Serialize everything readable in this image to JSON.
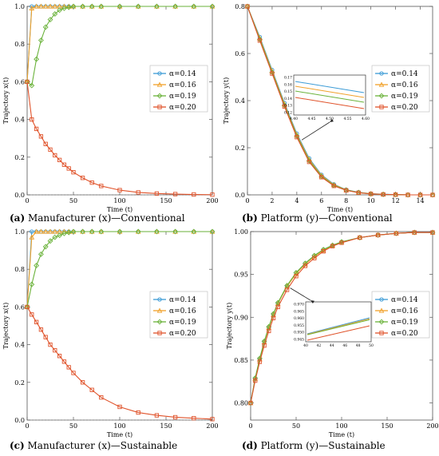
{
  "panels": [
    {
      "id": "a",
      "caption_label": "(a)",
      "caption_text": "Manufacturer (x)—Conventional",
      "xlabel": "Time (t)",
      "ylabel": "Trajectory x(t)",
      "xlim": [
        0,
        200
      ],
      "ylim": [
        0,
        1
      ],
      "xticks": [
        0,
        50,
        100,
        150,
        200
      ],
      "yticks": [
        0.0,
        0.2,
        0.4,
        0.6,
        0.8,
        1.0
      ],
      "ytick_labels": [
        "0.0",
        "0.2",
        "0.4",
        "0.6",
        "0.8",
        "1.0"
      ],
      "legend": [
        "α=0.14",
        "α=0.16",
        "α=0.19",
        "α=0.20"
      ]
    },
    {
      "id": "b",
      "caption_label": "(b)",
      "caption_text": "Platform (y)—Conventional",
      "xlabel": "Time (t)",
      "ylabel": "Trajectory y(t)",
      "xlim": [
        0,
        15
      ],
      "ylim": [
        0,
        0.8
      ],
      "xticks": [
        0,
        2,
        4,
        6,
        8,
        10,
        12,
        14
      ],
      "yticks": [
        0.0,
        0.2,
        0.4,
        0.6,
        0.8
      ],
      "ytick_labels": [
        "0.0",
        "0.2",
        "0.4",
        "0.6",
        "0.8"
      ],
      "legend": [
        "α=0.14",
        "α=0.16",
        "α=0.19",
        "α=0.20"
      ],
      "inset": {
        "xticks": [
          "4.40",
          "4.45",
          "4.50",
          "4.55",
          "4.60"
        ],
        "yticks": [
          "0.17",
          "0.16",
          "0.15",
          "0.14",
          "0.13",
          "0.12"
        ]
      }
    },
    {
      "id": "c",
      "caption_label": "(c)",
      "caption_text": "Manufacturer (x)—Sustainable",
      "xlabel": "Time (t)",
      "ylabel": "Trajectory x(t)",
      "xlim": [
        0,
        200
      ],
      "ylim": [
        0,
        1
      ],
      "xticks": [
        0,
        50,
        100,
        150,
        200
      ],
      "yticks": [
        0.0,
        0.2,
        0.4,
        0.6,
        0.8,
        1.0
      ],
      "ytick_labels": [
        "0.0",
        "0.2",
        "0.4",
        "0.6",
        "0.8",
        "1.0"
      ],
      "legend": [
        "α=0.14",
        "α=0.16",
        "α=0.19",
        "α=0.20"
      ]
    },
    {
      "id": "d",
      "caption_label": "(d)",
      "caption_text": "Platform (y)—Sustainable",
      "xlabel": "Time (t)",
      "ylabel": "Trajectory y(t)",
      "xlim": [
        0,
        200
      ],
      "ylim": [
        0.78,
        1.0
      ],
      "xticks": [
        0,
        50,
        100,
        150,
        200
      ],
      "yticks": [
        0.8,
        0.85,
        0.9,
        0.95,
        1.0
      ],
      "ytick_labels": [
        "0.80",
        "0.85",
        "0.90",
        "0.95",
        "1.00"
      ],
      "legend": [
        "α=0.14",
        "α=0.16",
        "α=0.19",
        "α=0.20"
      ],
      "inset": {
        "xticks": [
          "40",
          "42",
          "44",
          "46",
          "48",
          "50"
        ],
        "yticks": [
          "0.970",
          "0.965",
          "0.960",
          "0.955",
          "0.950",
          "0.945"
        ]
      }
    }
  ],
  "colors": {
    "alpha_014": "#3b9bd6",
    "alpha_016": "#f0a12a",
    "alpha_019": "#6ab23a",
    "alpha_020": "#e0532b"
  },
  "chart_data": [
    {
      "type": "line",
      "xlabel": "Time (t)",
      "ylabel": "Trajectory x(t)",
      "xlim": [
        0,
        200
      ],
      "ylim": [
        0,
        1
      ],
      "x": [
        0,
        5,
        10,
        15,
        20,
        25,
        30,
        35,
        40,
        45,
        50,
        60,
        70,
        80,
        100,
        120,
        140,
        160,
        180,
        200
      ],
      "series": [
        {
          "name": "α=0.14",
          "values": [
            0.6,
            1.0,
            1.0,
            1.0,
            1.0,
            1.0,
            1.0,
            1.0,
            1.0,
            1.0,
            1.0,
            1.0,
            1.0,
            1.0,
            1.0,
            1.0,
            1.0,
            1.0,
            1.0,
            1.0
          ]
        },
        {
          "name": "α=0.16",
          "values": [
            0.6,
            0.99,
            1.0,
            1.0,
            1.0,
            1.0,
            1.0,
            1.0,
            1.0,
            1.0,
            1.0,
            1.0,
            1.0,
            1.0,
            1.0,
            1.0,
            1.0,
            1.0,
            1.0,
            1.0
          ]
        },
        {
          "name": "α=0.19",
          "values": [
            0.6,
            0.58,
            0.72,
            0.82,
            0.89,
            0.93,
            0.96,
            0.98,
            0.99,
            0.995,
            1.0,
            1.0,
            1.0,
            1.0,
            1.0,
            1.0,
            1.0,
            1.0,
            1.0,
            1.0
          ]
        },
        {
          "name": "α=0.20",
          "values": [
            0.6,
            0.4,
            0.35,
            0.31,
            0.27,
            0.24,
            0.21,
            0.185,
            0.16,
            0.14,
            0.12,
            0.09,
            0.065,
            0.047,
            0.025,
            0.013,
            0.007,
            0.004,
            0.002,
            0.001
          ]
        }
      ]
    },
    {
      "type": "line",
      "xlabel": "Time (t)",
      "ylabel": "Trajectory y(t)",
      "xlim": [
        0,
        15
      ],
      "ylim": [
        0,
        0.8
      ],
      "x": [
        0,
        1,
        2,
        3,
        4,
        5,
        6,
        7,
        8,
        9,
        10,
        11,
        12,
        13,
        14,
        15
      ],
      "series": [
        {
          "name": "α=0.14",
          "values": [
            0.8,
            0.67,
            0.53,
            0.39,
            0.26,
            0.155,
            0.085,
            0.045,
            0.022,
            0.011,
            0.005,
            0.003,
            0.001,
            0.0,
            0.0,
            0.0
          ]
        },
        {
          "name": "α=0.16",
          "values": [
            0.8,
            0.665,
            0.525,
            0.385,
            0.255,
            0.15,
            0.082,
            0.043,
            0.021,
            0.01,
            0.005,
            0.002,
            0.001,
            0.0,
            0.0,
            0.0
          ]
        },
        {
          "name": "α=0.19",
          "values": [
            0.8,
            0.66,
            0.52,
            0.38,
            0.25,
            0.145,
            0.078,
            0.04,
            0.02,
            0.01,
            0.004,
            0.002,
            0.001,
            0.0,
            0.0,
            0.0
          ]
        },
        {
          "name": "α=0.20",
          "values": [
            0.8,
            0.655,
            0.515,
            0.375,
            0.245,
            0.14,
            0.075,
            0.038,
            0.019,
            0.009,
            0.004,
            0.002,
            0.001,
            0.0,
            0.0,
            0.0
          ]
        }
      ]
    },
    {
      "type": "line",
      "xlabel": "Time (t)",
      "ylabel": "Trajectory x(t)",
      "xlim": [
        0,
        200
      ],
      "ylim": [
        0,
        1
      ],
      "x": [
        0,
        5,
        10,
        15,
        20,
        25,
        30,
        35,
        40,
        45,
        50,
        60,
        70,
        80,
        100,
        120,
        140,
        160,
        180,
        200
      ],
      "series": [
        {
          "name": "α=0.14",
          "values": [
            0.6,
            1.0,
            1.0,
            1.0,
            1.0,
            1.0,
            1.0,
            1.0,
            1.0,
            1.0,
            1.0,
            1.0,
            1.0,
            1.0,
            1.0,
            1.0,
            1.0,
            1.0,
            1.0,
            1.0
          ]
        },
        {
          "name": "α=0.16",
          "values": [
            0.6,
            0.97,
            1.0,
            1.0,
            1.0,
            1.0,
            1.0,
            1.0,
            1.0,
            1.0,
            1.0,
            1.0,
            1.0,
            1.0,
            1.0,
            1.0,
            1.0,
            1.0,
            1.0,
            1.0
          ]
        },
        {
          "name": "α=0.19",
          "values": [
            0.6,
            0.72,
            0.82,
            0.88,
            0.92,
            0.95,
            0.97,
            0.98,
            0.99,
            0.995,
            1.0,
            1.0,
            1.0,
            1.0,
            1.0,
            1.0,
            1.0,
            1.0,
            1.0,
            1.0
          ]
        },
        {
          "name": "α=0.20",
          "values": [
            0.6,
            0.56,
            0.52,
            0.48,
            0.44,
            0.4,
            0.37,
            0.34,
            0.31,
            0.28,
            0.25,
            0.2,
            0.16,
            0.12,
            0.07,
            0.04,
            0.025,
            0.015,
            0.01,
            0.005
          ]
        }
      ]
    },
    {
      "type": "line",
      "xlabel": "Time (t)",
      "ylabel": "Trajectory y(t)",
      "xlim": [
        0,
        200
      ],
      "ylim": [
        0.78,
        1.0
      ],
      "x": [
        0,
        5,
        10,
        15,
        20,
        25,
        30,
        40,
        50,
        60,
        70,
        80,
        90,
        100,
        120,
        140,
        160,
        180,
        200
      ],
      "series": [
        {
          "name": "α=0.14",
          "values": [
            0.8,
            0.828,
            0.851,
            0.871,
            0.888,
            0.903,
            0.916,
            0.936,
            0.952,
            0.963,
            0.972,
            0.979,
            0.984,
            0.988,
            0.993,
            0.996,
            0.998,
            0.999,
            0.999
          ]
        },
        {
          "name": "α=0.16",
          "values": [
            0.8,
            0.828,
            0.851,
            0.871,
            0.888,
            0.903,
            0.916,
            0.936,
            0.951,
            0.962,
            0.971,
            0.978,
            0.984,
            0.988,
            0.993,
            0.996,
            0.998,
            0.999,
            0.999
          ]
        },
        {
          "name": "α=0.19",
          "values": [
            0.8,
            0.829,
            0.852,
            0.872,
            0.889,
            0.904,
            0.917,
            0.937,
            0.952,
            0.963,
            0.972,
            0.979,
            0.984,
            0.988,
            0.993,
            0.996,
            0.998,
            0.999,
            0.999
          ]
        },
        {
          "name": "α=0.20",
          "values": [
            0.8,
            0.826,
            0.848,
            0.867,
            0.884,
            0.899,
            0.912,
            0.932,
            0.948,
            0.96,
            0.969,
            0.977,
            0.983,
            0.987,
            0.993,
            0.996,
            0.998,
            0.999,
            0.999
          ]
        }
      ]
    }
  ]
}
